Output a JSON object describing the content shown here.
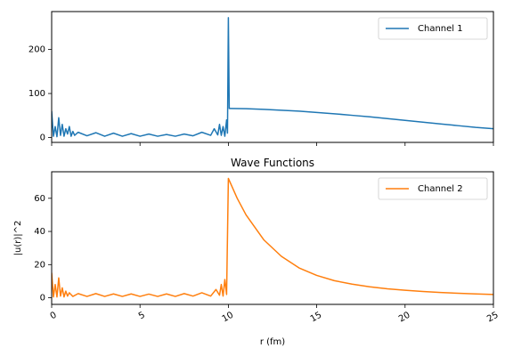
{
  "chart_data": [
    {
      "type": "line",
      "title": "",
      "xlabel": "",
      "ylabel": "",
      "xlim": [
        0,
        25
      ],
      "ylim": [
        -11,
        286
      ],
      "xticks": [
        0,
        5,
        10,
        15,
        20,
        25
      ],
      "xtick_labels_visible": false,
      "yticks": [
        0,
        100,
        200
      ],
      "grid": false,
      "legend_position": "top-right",
      "series": [
        {
          "name": "Channel 1",
          "color": "#1f77b4",
          "x": [
            0,
            0.1,
            0.2,
            0.3,
            0.4,
            0.5,
            0.6,
            0.7,
            0.8,
            0.9,
            1.0,
            1.1,
            1.2,
            1.3,
            1.5,
            2.0,
            2.5,
            3.0,
            3.5,
            4.0,
            4.5,
            5.0,
            5.5,
            6.0,
            6.5,
            7.0,
            7.5,
            8.0,
            8.5,
            9.0,
            9.2,
            9.4,
            9.5,
            9.6,
            9.7,
            9.8,
            9.9,
            9.95,
            10.0,
            10.05,
            10.1,
            11,
            12,
            13,
            14,
            15,
            16,
            17,
            18,
            19,
            20,
            21,
            22,
            23,
            24,
            25
          ],
          "y": [
            60,
            3,
            25,
            2,
            45,
            5,
            30,
            3,
            20,
            8,
            25,
            3,
            14,
            5,
            12,
            4,
            11,
            3,
            10,
            3,
            9,
            3,
            8,
            3,
            7,
            3,
            8,
            4,
            12,
            5,
            20,
            6,
            30,
            5,
            25,
            3,
            40,
            10,
            272,
            66,
            66,
            65.5,
            64,
            62,
            60,
            57,
            54,
            50.5,
            47,
            43,
            39,
            35,
            31,
            27,
            23,
            20
          ]
        }
      ]
    },
    {
      "type": "line",
      "title": "Wave Functions",
      "xlabel": "r (fm)",
      "ylabel": "|u(r)|^2",
      "xlim": [
        0,
        25
      ],
      "ylim": [
        -4,
        76
      ],
      "xticks": [
        0,
        5,
        10,
        15,
        20,
        25
      ],
      "yticks": [
        0,
        20,
        40,
        60
      ],
      "grid": false,
      "legend_position": "top-right",
      "series": [
        {
          "name": "Channel 2",
          "color": "#ff7f0e",
          "x": [
            0,
            0.1,
            0.2,
            0.3,
            0.4,
            0.5,
            0.6,
            0.7,
            0.8,
            0.9,
            1.0,
            1.2,
            1.5,
            2.0,
            2.5,
            3.0,
            3.5,
            4.0,
            4.5,
            5.0,
            5.5,
            6.0,
            6.5,
            7.0,
            7.5,
            8.0,
            8.5,
            9.0,
            9.3,
            9.5,
            9.6,
            9.7,
            9.8,
            9.9,
            10.0,
            10.5,
            11,
            12,
            13,
            14,
            15,
            16,
            17,
            18,
            19,
            20,
            21,
            22,
            23,
            24,
            25
          ],
          "y": [
            15,
            0.5,
            8,
            0.5,
            12,
            1,
            6,
            0.5,
            4,
            1,
            3,
            0.8,
            2.5,
            0.8,
            2.5,
            0.8,
            2.3,
            0.8,
            2.3,
            0.8,
            2.2,
            0.8,
            2.3,
            0.8,
            2.5,
            1,
            3,
            1,
            5,
            1.5,
            8,
            1,
            11,
            2,
            72,
            60,
            50,
            35,
            25,
            18,
            13.5,
            10.3,
            8.2,
            6.6,
            5.4,
            4.5,
            3.8,
            3.2,
            2.7,
            2.3,
            2
          ]
        }
      ]
    }
  ]
}
